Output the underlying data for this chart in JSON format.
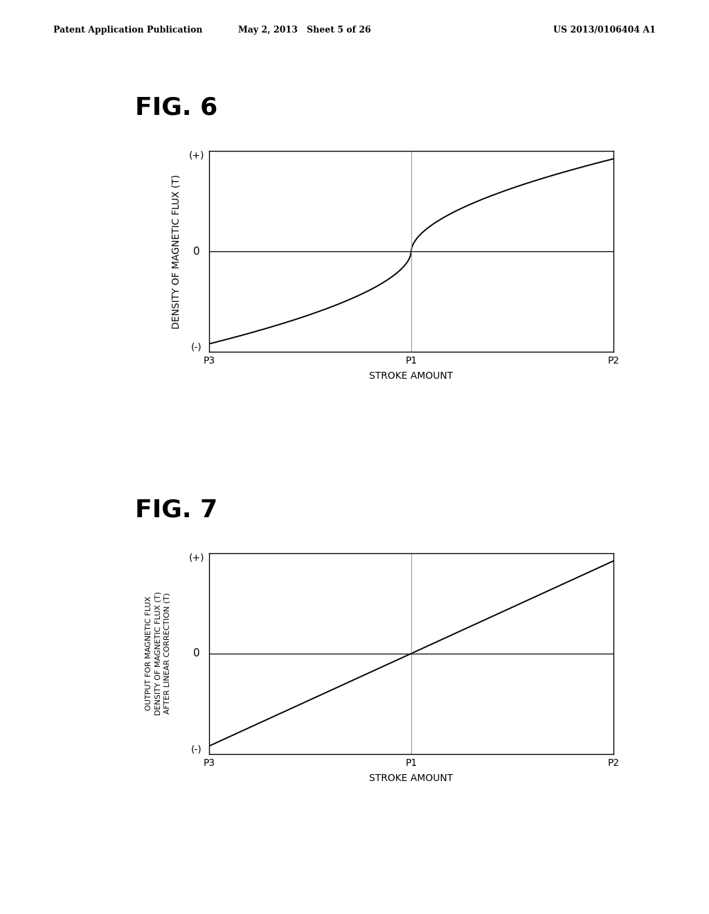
{
  "header_left": "Patent Application Publication",
  "header_mid": "May 2, 2013   Sheet 5 of 26",
  "header_right": "US 2013/0106404 A1",
  "fig6_title": "FIG. 6",
  "fig7_title": "FIG. 7",
  "fig6_ylabel": "DENSITY OF MAGNETIC FLUX (T)",
  "fig6_xlabel": "STROKE AMOUNT",
  "fig7_ylabel_line1": "OUTPUT FOR MAGNETIC FLUX",
  "fig7_ylabel_line2": "DENSITY OF MAGNETIC FLUX (T)",
  "fig7_ylabel_line3": "AFTER LINEAR CORRECTION (T)",
  "fig7_xlabel": "STROKE AMOUNT",
  "x_ticks": [
    "P3",
    "P1",
    "P2"
  ],
  "y_plus_label": "(+)",
  "y_zero_label": "0",
  "y_minus_label": "(-)",
  "background_color": "#ffffff",
  "line_color": "#000000",
  "grid_color": "#999999",
  "axis_color": "#000000",
  "header_fontsize": 9,
  "fig_title_fontsize": 26,
  "axis_label_fontsize": 10,
  "tick_label_fontsize": 10,
  "pm_label_fontsize": 10,
  "zero_label_fontsize": 11
}
